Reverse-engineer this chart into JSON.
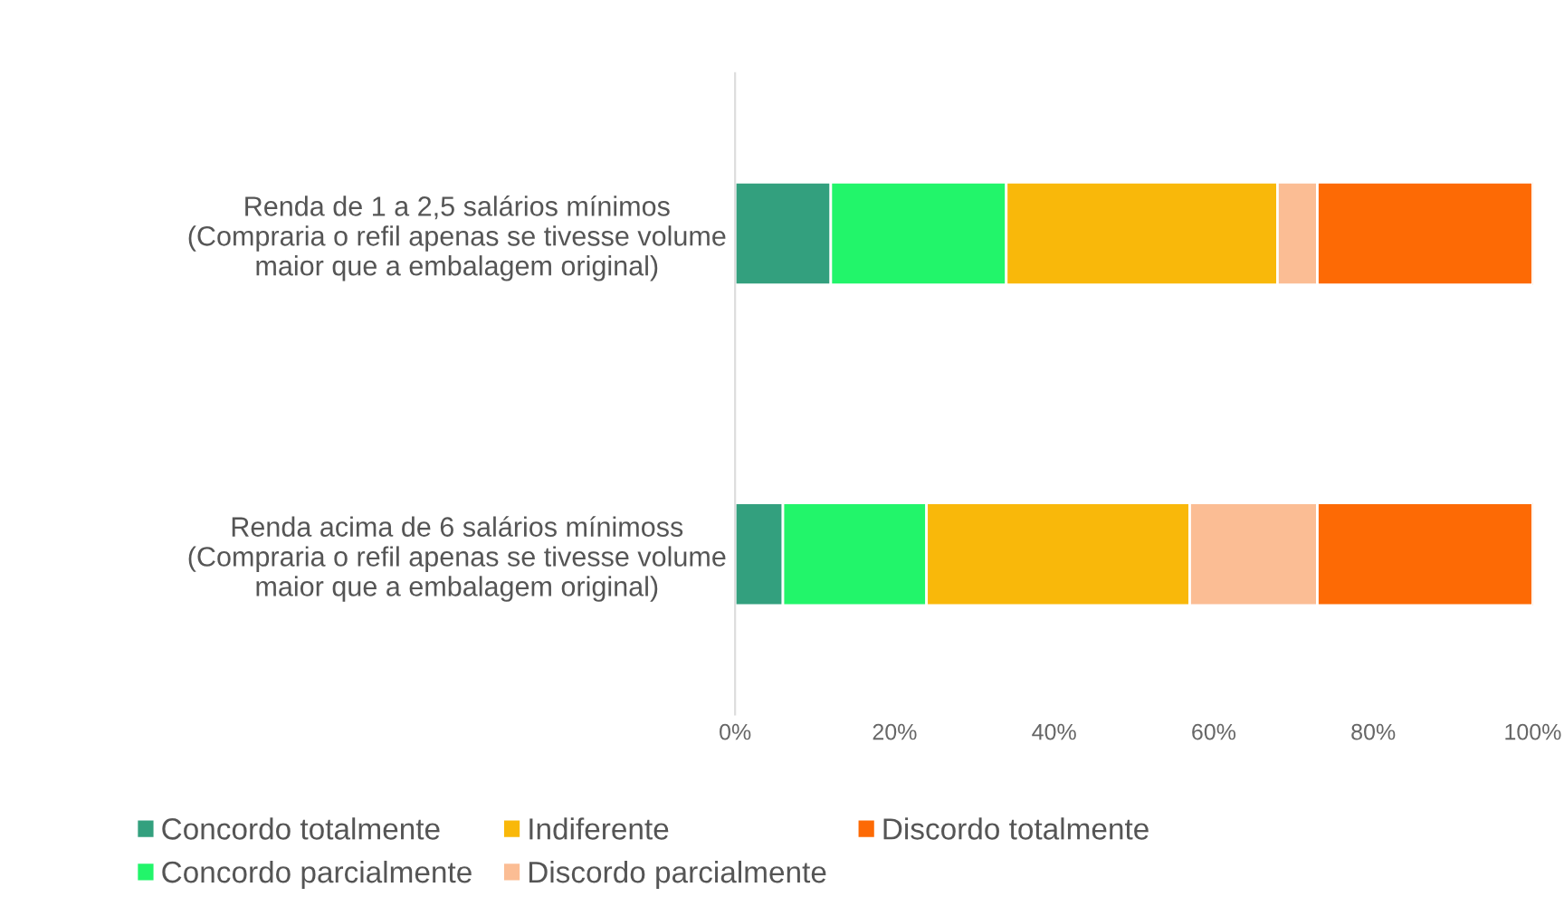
{
  "chart_data": {
    "type": "bar",
    "orientation": "horizontal",
    "stacked": true,
    "categories": [
      "Renda de 1 a 2,5 salários mínimos\n(Compraria o refil apenas se tivesse volume\nmaior que a embalagem original)",
      "Renda acima de 6 salários mínimoss\n(Compraria o refil apenas se tivesse volume\nmaior que a embalagem original)"
    ],
    "series": [
      {
        "name": "Concordo totalmente",
        "color": "#33a07e",
        "values": [
          12,
          6
        ]
      },
      {
        "name": "Concordo parcialmente",
        "color": "#22f56a",
        "values": [
          22,
          18
        ]
      },
      {
        "name": "Indiferente",
        "color": "#f9b80a",
        "values": [
          34,
          33
        ]
      },
      {
        "name": "Discordo parcialmente",
        "color": "#fbbd94",
        "values": [
          5,
          16
        ]
      },
      {
        "name": "Discordo totalmente",
        "color": "#fd6a05",
        "values": [
          27,
          27
        ]
      }
    ],
    "xlim": [
      0,
      100
    ],
    "xticks": [
      {
        "value": 0,
        "label": "0%"
      },
      {
        "value": 20,
        "label": "20%"
      },
      {
        "value": 40,
        "label": "40%"
      },
      {
        "value": 60,
        "label": "60%"
      },
      {
        "value": 80,
        "label": "80%"
      },
      {
        "value": 100,
        "label": "100%"
      }
    ],
    "grid": false,
    "legend": "bottom"
  }
}
